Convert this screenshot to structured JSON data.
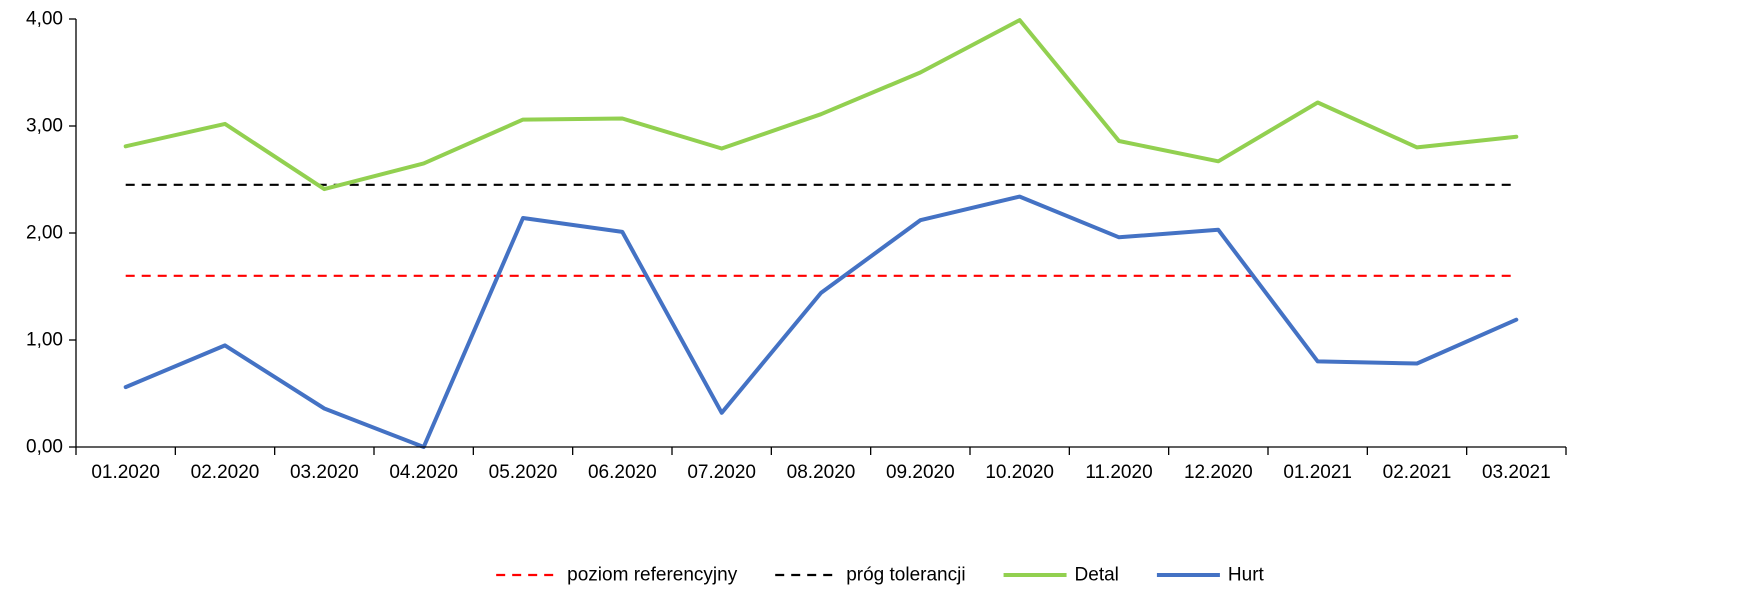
{
  "chart_data": {
    "type": "line",
    "categories": [
      "01.2020",
      "02.2020",
      "03.2020",
      "04.2020",
      "05.2020",
      "06.2020",
      "07.2020",
      "08.2020",
      "09.2020",
      "10.2020",
      "11.2020",
      "12.2020",
      "01.2021",
      "02.2021",
      "03.2021"
    ],
    "series": [
      {
        "name": "poziom referencyjny",
        "color": "#ff0000",
        "style": "dashed",
        "values": [
          1.6,
          1.6,
          1.6,
          1.6,
          1.6,
          1.6,
          1.6,
          1.6,
          1.6,
          1.6,
          1.6,
          1.6,
          1.6,
          1.6,
          1.6
        ]
      },
      {
        "name": "próg tolerancji",
        "color": "#000000",
        "style": "dashed",
        "values": [
          2.45,
          2.45,
          2.45,
          2.45,
          2.45,
          2.45,
          2.45,
          2.45,
          2.45,
          2.45,
          2.45,
          2.45,
          2.45,
          2.45,
          2.45
        ]
      },
      {
        "name": "Detal",
        "color": "#92d050",
        "style": "solid",
        "values": [
          2.81,
          3.02,
          2.41,
          2.65,
          3.06,
          3.07,
          2.79,
          3.11,
          3.5,
          3.99,
          2.86,
          2.67,
          3.22,
          2.8,
          2.9
        ]
      },
      {
        "name": "Hurt",
        "color": "#4472c4",
        "style": "solid",
        "values": [
          0.56,
          0.95,
          0.36,
          0.0,
          2.14,
          2.01,
          0.32,
          1.44,
          2.12,
          2.34,
          1.96,
          2.03,
          0.8,
          0.78,
          1.19
        ]
      }
    ],
    "y_ticks": [
      "0,00",
      "1,00",
      "2,00",
      "3,00",
      "4,00"
    ],
    "ylim": [
      0,
      4
    ],
    "grid": false,
    "legend_position": "bottom"
  }
}
